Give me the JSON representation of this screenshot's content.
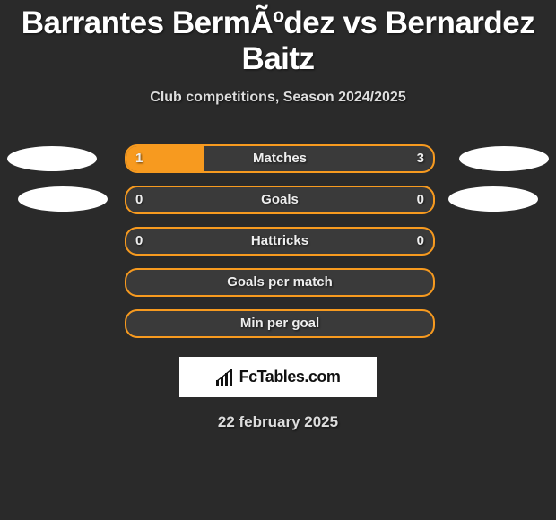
{
  "title": "Barrantes BermÃºdez vs Bernardez Baitz",
  "subtitle": "Club competitions, Season 2024/2025",
  "date": "22 february 2025",
  "logo": "FcTables.com",
  "chart": {
    "type": "bar-comparison",
    "bar_border_color": "#f79a1f",
    "bar_fill_color": "#f79a1f",
    "bar_background": "#3a3a3a",
    "text_color": "#eeeeee",
    "page_background": "#2a2a2a",
    "oval_color": "#ffffff",
    "rows": [
      {
        "label": "Matches",
        "left": "1",
        "right": "3",
        "fill_pct": 25,
        "show_left_oval": true,
        "show_right_oval": true
      },
      {
        "label": "Goals",
        "left": "0",
        "right": "0",
        "fill_pct": 0,
        "show_left_oval": true,
        "show_right_oval": true
      },
      {
        "label": "Hattricks",
        "left": "0",
        "right": "0",
        "fill_pct": 0,
        "show_left_oval": false,
        "show_right_oval": false
      },
      {
        "label": "Goals per match",
        "left": "",
        "right": "",
        "fill_pct": 0,
        "show_left_oval": false,
        "show_right_oval": false
      },
      {
        "label": "Min per goal",
        "left": "",
        "right": "",
        "fill_pct": 0,
        "show_left_oval": false,
        "show_right_oval": false
      }
    ]
  }
}
